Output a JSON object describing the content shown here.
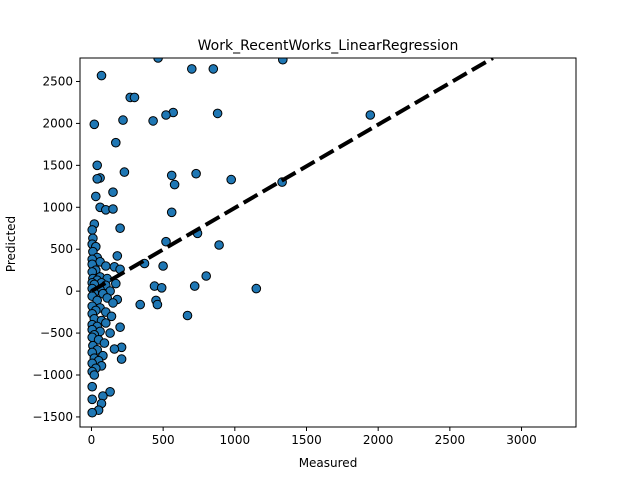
{
  "chart_data": {
    "type": "scatter",
    "title": "Work_RecentWorks_LinearRegression",
    "xlabel": "Measured",
    "ylabel": "Predicted",
    "xlim": [
      -80,
      3380
    ],
    "ylim": [
      -1620,
      2780
    ],
    "xticks": [
      0,
      500,
      1000,
      1500,
      2000,
      2500,
      3000
    ],
    "yticks": [
      -1500,
      -1000,
      -500,
      0,
      500,
      1000,
      1500,
      2000,
      2500
    ],
    "grid": false,
    "legend": "none",
    "point_color": "#1f77b4",
    "point_edge_color": "#000000",
    "reference_line": {
      "style": "dashed",
      "color": "#000000",
      "x": [
        0,
        2800
      ],
      "y": [
        0,
        2780
      ]
    },
    "points": [
      {
        "x": 465,
        "y": 2780
      },
      {
        "x": 1335,
        "y": 2760
      },
      {
        "x": 700,
        "y": 2650
      },
      {
        "x": 850,
        "y": 2650
      },
      {
        "x": 70,
        "y": 2570
      },
      {
        "x": 270,
        "y": 2310
      },
      {
        "x": 300,
        "y": 2310
      },
      {
        "x": 570,
        "y": 2130
      },
      {
        "x": 520,
        "y": 2100
      },
      {
        "x": 880,
        "y": 2120
      },
      {
        "x": 1945,
        "y": 2100
      },
      {
        "x": 220,
        "y": 2040
      },
      {
        "x": 430,
        "y": 2030
      },
      {
        "x": 20,
        "y": 1990
      },
      {
        "x": 170,
        "y": 1770
      },
      {
        "x": 40,
        "y": 1500
      },
      {
        "x": 60,
        "y": 1350
      },
      {
        "x": 40,
        "y": 1340
      },
      {
        "x": 560,
        "y": 1380
      },
      {
        "x": 730,
        "y": 1400
      },
      {
        "x": 230,
        "y": 1420
      },
      {
        "x": 975,
        "y": 1330
      },
      {
        "x": 1330,
        "y": 1300
      },
      {
        "x": 580,
        "y": 1270
      },
      {
        "x": 150,
        "y": 1180
      },
      {
        "x": 30,
        "y": 1130
      },
      {
        "x": 60,
        "y": 1000
      },
      {
        "x": 100,
        "y": 970
      },
      {
        "x": 150,
        "y": 980
      },
      {
        "x": 560,
        "y": 940
      },
      {
        "x": 20,
        "y": 800
      },
      {
        "x": 200,
        "y": 750
      },
      {
        "x": 5,
        "y": 730
      },
      {
        "x": 740,
        "y": 690
      },
      {
        "x": 10,
        "y": 630
      },
      {
        "x": 520,
        "y": 590
      },
      {
        "x": 5,
        "y": 560
      },
      {
        "x": 890,
        "y": 550
      },
      {
        "x": 30,
        "y": 530
      },
      {
        "x": 10,
        "y": 470
      },
      {
        "x": 180,
        "y": 420
      },
      {
        "x": 40,
        "y": 400
      },
      {
        "x": 5,
        "y": 380
      },
      {
        "x": 60,
        "y": 350
      },
      {
        "x": 370,
        "y": 330
      },
      {
        "x": 5,
        "y": 320
      },
      {
        "x": 100,
        "y": 300
      },
      {
        "x": 160,
        "y": 290
      },
      {
        "x": 500,
        "y": 300
      },
      {
        "x": 30,
        "y": 250
      },
      {
        "x": 200,
        "y": 260
      },
      {
        "x": 5,
        "y": 230
      },
      {
        "x": 800,
        "y": 180
      },
      {
        "x": 60,
        "y": 170
      },
      {
        "x": 10,
        "y": 150
      },
      {
        "x": 110,
        "y": 150
      },
      {
        "x": 40,
        "y": 130
      },
      {
        "x": 5,
        "y": 100
      },
      {
        "x": 70,
        "y": 100
      },
      {
        "x": 170,
        "y": 90
      },
      {
        "x": 20,
        "y": 80
      },
      {
        "x": 100,
        "y": 70
      },
      {
        "x": 440,
        "y": 60
      },
      {
        "x": 720,
        "y": 60
      },
      {
        "x": 490,
        "y": 40
      },
      {
        "x": 1150,
        "y": 30
      },
      {
        "x": 5,
        "y": 30
      },
      {
        "x": 60,
        "y": 20
      },
      {
        "x": 130,
        "y": 0
      },
      {
        "x": 20,
        "y": -20
      },
      {
        "x": 80,
        "y": -30
      },
      {
        "x": 5,
        "y": -60
      },
      {
        "x": 110,
        "y": -80
      },
      {
        "x": 40,
        "y": -110
      },
      {
        "x": 180,
        "y": -100
      },
      {
        "x": 450,
        "y": -110
      },
      {
        "x": 150,
        "y": -140
      },
      {
        "x": 460,
        "y": -160
      },
      {
        "x": 340,
        "y": -160
      },
      {
        "x": 5,
        "y": -180
      },
      {
        "x": 60,
        "y": -200
      },
      {
        "x": 30,
        "y": -230
      },
      {
        "x": 100,
        "y": -250
      },
      {
        "x": 5,
        "y": -270
      },
      {
        "x": 670,
        "y": -290
      },
      {
        "x": 140,
        "y": -300
      },
      {
        "x": 20,
        "y": -330
      },
      {
        "x": 70,
        "y": -350
      },
      {
        "x": 100,
        "y": -380
      },
      {
        "x": 5,
        "y": -400
      },
      {
        "x": 40,
        "y": -420
      },
      {
        "x": 200,
        "y": -430
      },
      {
        "x": 5,
        "y": -460
      },
      {
        "x": 60,
        "y": -480
      },
      {
        "x": 130,
        "y": -500
      },
      {
        "x": 20,
        "y": -520
      },
      {
        "x": 5,
        "y": -550
      },
      {
        "x": 50,
        "y": -580
      },
      {
        "x": 90,
        "y": -620
      },
      {
        "x": 10,
        "y": -650
      },
      {
        "x": 210,
        "y": -670
      },
      {
        "x": 160,
        "y": -690
      },
      {
        "x": 40,
        "y": -700
      },
      {
        "x": 5,
        "y": -730
      },
      {
        "x": 80,
        "y": -770
      },
      {
        "x": 20,
        "y": -800
      },
      {
        "x": 210,
        "y": -810
      },
      {
        "x": 50,
        "y": -830
      },
      {
        "x": 5,
        "y": -860
      },
      {
        "x": 70,
        "y": -890
      },
      {
        "x": 30,
        "y": -920
      },
      {
        "x": 5,
        "y": -960
      },
      {
        "x": 20,
        "y": -1000
      },
      {
        "x": 5,
        "y": -1140
      },
      {
        "x": 130,
        "y": -1200
      },
      {
        "x": 80,
        "y": -1250
      },
      {
        "x": 5,
        "y": -1290
      },
      {
        "x": 70,
        "y": -1340
      },
      {
        "x": 50,
        "y": -1420
      },
      {
        "x": 5,
        "y": -1450
      }
    ]
  }
}
